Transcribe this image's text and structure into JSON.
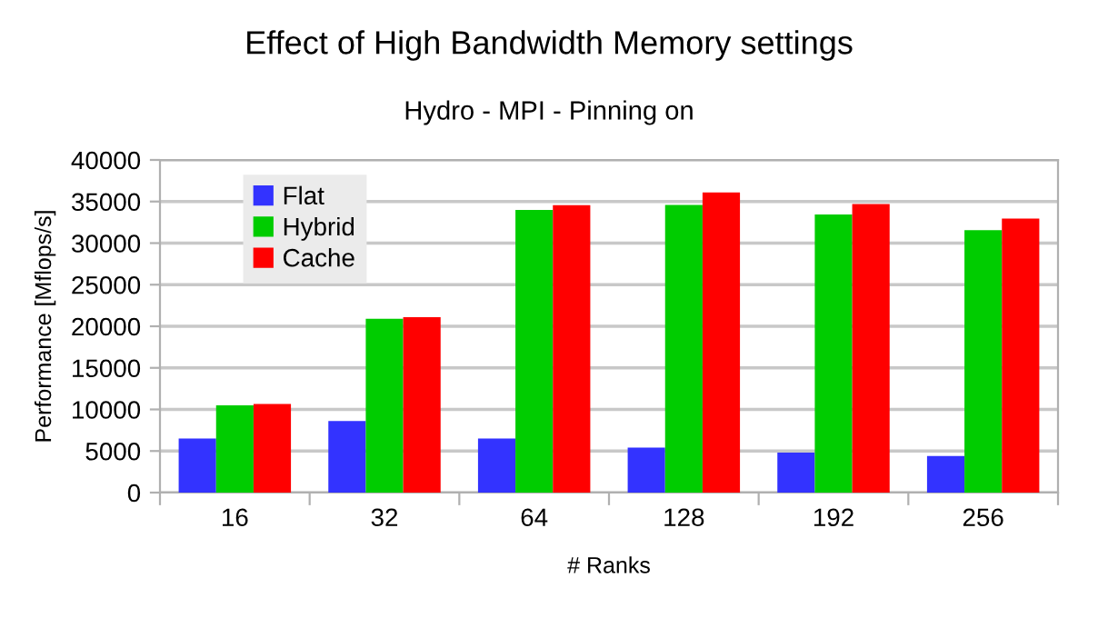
{
  "chart_data": {
    "type": "bar",
    "title": "Effect of High Bandwidth Memory settings",
    "subtitle": "Hydro - MPI - Pinning on",
    "xlabel": "# Ranks",
    "ylabel": "Performance [Mflops/s]",
    "categories": [
      "16",
      "32",
      "64",
      "128",
      "192",
      "256"
    ],
    "series": [
      {
        "name": "Flat",
        "color": "#3333ff",
        "values": [
          6500,
          8600,
          6500,
          5400,
          4800,
          4400
        ]
      },
      {
        "name": "Hybrid",
        "color": "#00cc00",
        "values": [
          10500,
          20900,
          34000,
          34600,
          33450,
          31550
        ]
      },
      {
        "name": "Cache",
        "color": "#ff0000",
        "values": [
          10650,
          21100,
          34550,
          36100,
          34700,
          32950
        ]
      }
    ],
    "ylim": [
      0,
      40000
    ],
    "yticks": [
      0,
      5000,
      10000,
      15000,
      20000,
      25000,
      30000,
      35000,
      40000
    ],
    "grid": "y",
    "legend": "top left"
  }
}
